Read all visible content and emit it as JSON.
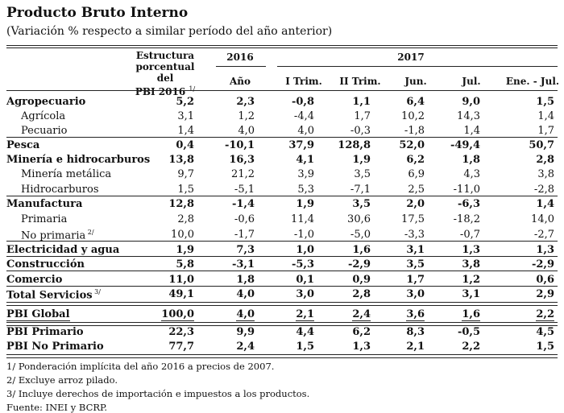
{
  "title": "Producto Bruto Interno",
  "subtitle": "(Variación % respecto a similar período del año anterior)",
  "header": {
    "estructura_l1": "Estructura",
    "estructura_l2": "porcentual del",
    "estructura_l3": "PBI 2016",
    "estructura_note": "1/",
    "y2016": "2016",
    "y2017": "2017",
    "ano": "Año",
    "cols": [
      "I Trim.",
      "II Trim.",
      "Jun.",
      "Jul.",
      "Ene. - Jul."
    ]
  },
  "rows": [
    {
      "label": "Agropecuario",
      "note": "",
      "v": [
        "5,2",
        "2,3",
        "-0,8",
        "1,1",
        "6,4",
        "9,0",
        "1,5"
      ]
    },
    {
      "label": "Agrícola",
      "note": "",
      "v": [
        "3,1",
        "1,2",
        "-4,4",
        "1,7",
        "10,2",
        "14,3",
        "1,4"
      ]
    },
    {
      "label": "Pecuario",
      "note": "",
      "v": [
        "1,4",
        "4,0",
        "4,0",
        "-0,3",
        "-1,8",
        "1,4",
        "1,7"
      ]
    },
    {
      "label": "Pesca",
      "note": "",
      "v": [
        "0,4",
        "-10,1",
        "37,9",
        "128,8",
        "52,0",
        "-49,4",
        "50,7"
      ]
    },
    {
      "label": "Minería e hidrocarburos",
      "note": "",
      "v": [
        "13,8",
        "16,3",
        "4,1",
        "1,9",
        "6,2",
        "1,8",
        "2,8"
      ]
    },
    {
      "label": "Minería metálica",
      "note": "",
      "v": [
        "9,7",
        "21,2",
        "3,9",
        "3,5",
        "6,9",
        "4,3",
        "3,8"
      ]
    },
    {
      "label": "Hidrocarburos",
      "note": "",
      "v": [
        "1,5",
        "-5,1",
        "5,3",
        "-7,1",
        "2,5",
        "-11,0",
        "-2,8"
      ]
    },
    {
      "label": "Manufactura",
      "note": "",
      "v": [
        "12,8",
        "-1,4",
        "1,9",
        "3,5",
        "2,0",
        "-6,3",
        "1,4"
      ]
    },
    {
      "label": "Primaria",
      "note": "",
      "v": [
        "2,8",
        "-0,6",
        "11,4",
        "30,6",
        "17,5",
        "-18,2",
        "14,0"
      ]
    },
    {
      "label": "No primaria",
      "note": "2/",
      "v": [
        "10,0",
        "-1,7",
        "-1,0",
        "-5,0",
        "-3,3",
        "-0,7",
        "-2,7"
      ]
    },
    {
      "label": "Electricidad y agua",
      "note": "",
      "v": [
        "1,9",
        "7,3",
        "1,0",
        "1,6",
        "3,1",
        "1,3",
        "1,3"
      ]
    },
    {
      "label": "Construcción",
      "note": "",
      "v": [
        "5,8",
        "-3,1",
        "-5,3",
        "-2,9",
        "3,5",
        "3,8",
        "-2,9"
      ]
    },
    {
      "label": "Comercio",
      "note": "",
      "v": [
        "11,0",
        "1,8",
        "0,1",
        "0,9",
        "1,7",
        "1,2",
        "0,6"
      ]
    },
    {
      "label": "Total Servicios",
      "note": "3/",
      "v": [
        "49,1",
        "4,0",
        "3,0",
        "2,8",
        "3,0",
        "3,1",
        "2,9"
      ]
    },
    {
      "label": "PBI Global",
      "note": "",
      "v": [
        "100,0",
        "4,0",
        "2,1",
        "2,4",
        "3,6",
        "1,6",
        "2,2"
      ]
    },
    {
      "label": "PBI Primario",
      "note": "",
      "v": [
        "22,3",
        "9,9",
        "4,4",
        "6,2",
        "8,3",
        "-0,5",
        "4,5"
      ]
    },
    {
      "label": "PBI No Primario",
      "note": "",
      "v": [
        "77,7",
        "2,4",
        "1,5",
        "1,3",
        "2,1",
        "2,2",
        "1,5"
      ]
    }
  ],
  "notes": [
    "1/ Ponderación implícita del año 2016 a precios de 2007.",
    "2/ Excluye arroz pilado.",
    "3/ Incluye derechos de importación e impuestos a los productos.",
    "Fuente: INEI y BCRP."
  ]
}
